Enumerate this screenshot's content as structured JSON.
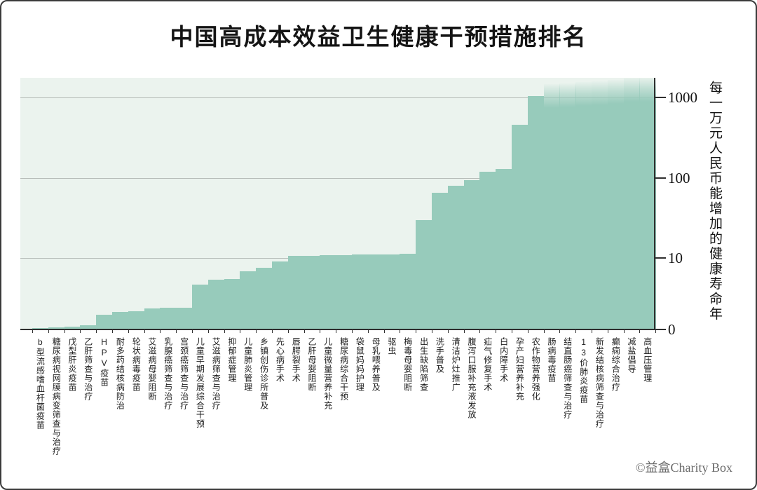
{
  "title": "中国高成本效益卫生健康干预措施排名",
  "watermark": "©益盒Charity Box",
  "chart_data": {
    "type": "bar",
    "title": "中国高成本效益卫生健康干预措施排名",
    "xlabel": "",
    "ylabel": "每一万元人民币能增加的健康寿命年",
    "y_scale": "log",
    "ylim": [
      1,
      2000
    ],
    "yticks": [
      "1000",
      "100",
      "10",
      "0"
    ],
    "grid": "horizontal",
    "legend": "none",
    "bar_color": "#97cbbb",
    "plot_bg_color": "#ebf3ee",
    "categories": [
      "b型流感嗜血杆菌疫苗",
      "糖尿病视网膜病变筛查与治疗",
      "戊型肝炎疫苗",
      "乙肝筛查与治疗",
      "HPV疫苗",
      "耐多药结核病防治",
      "轮状病毒疫苗",
      "艾滋病母婴阻断",
      "乳腺癌筛查与治疗",
      "宫颈癌筛查与治疗",
      "儿童早期发展综合干预",
      "艾滋病筛查与治疗",
      "抑郁症管理",
      "儿童肺炎管理",
      "乡镇创伤诊所普及",
      "先心病手术",
      "唇腭裂手术",
      "乙肝母婴阻断",
      "儿童微量营养补充",
      "糖尿病综合干预",
      "袋鼠妈妈护理",
      "母乳喂养普及",
      "驱虫",
      "梅毒母婴阻断",
      "出生缺陷筛查",
      "洗手普及",
      "清洁炉灶推广",
      "腹泻口服补充液发放",
      "疝气修复手术",
      "白内障手术",
      "孕产妇营养补充",
      "农作物营养强化",
      "肠病毒疫苗",
      "结直肠癌筛查与治疗",
      "13价肺炎疫苗",
      "新发结核病筛查与治疗",
      "癫痫综合治疗",
      "减盐倡导",
      "高血压管理"
    ],
    "values": [
      1.05,
      1.07,
      1.1,
      1.15,
      1.6,
      1.75,
      1.8,
      1.95,
      2.0,
      2.0,
      4.2,
      5.0,
      5.1,
      6.5,
      7.3,
      9.0,
      10.6,
      10.7,
      10.8,
      10.9,
      11.0,
      11.0,
      11.1,
      11.2,
      30,
      65,
      80,
      95,
      120,
      130,
      460,
      1050,
      1450,
      1500,
      1550,
      1600,
      1650,
      1750,
      1850
    ]
  }
}
